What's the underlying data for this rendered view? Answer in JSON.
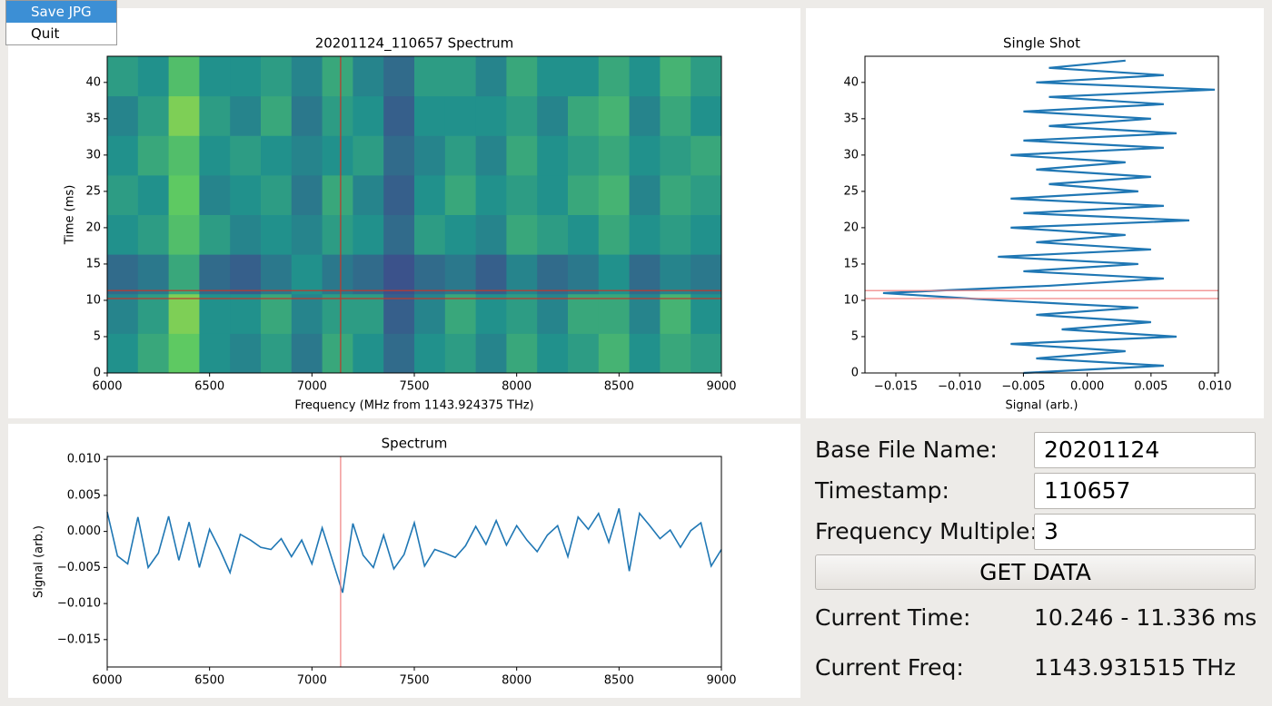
{
  "menu": [
    "Save JPG",
    "Quit"
  ],
  "chart_data": [
    {
      "type": "heatmap",
      "title": "20201124_110657 Spectrum",
      "x_label": "Frequency (MHz from 1143.924375 THz)",
      "y_label": "Time (ms)",
      "xlim": [
        6000,
        9000
      ],
      "ylim": [
        0,
        43.6
      ],
      "xticks": [
        6000,
        6500,
        7000,
        7500,
        8000,
        8500,
        9000
      ],
      "yticks": [
        0,
        5,
        10,
        15,
        20,
        25,
        30,
        35,
        40
      ],
      "zlim": [
        0,
        1
      ],
      "z": [
        [
          0.5,
          0.6,
          0.75,
          0.5,
          0.45,
          0.55,
          0.4,
          0.6,
          0.5,
          0.35,
          0.5,
          0.55,
          0.45,
          0.6,
          0.5,
          0.55,
          0.65,
          0.5,
          0.6,
          0.55
        ],
        [
          0.45,
          0.55,
          0.8,
          0.5,
          0.5,
          0.6,
          0.45,
          0.55,
          0.55,
          0.3,
          0.45,
          0.6,
          0.5,
          0.55,
          0.45,
          0.6,
          0.6,
          0.45,
          0.65,
          0.5
        ],
        [
          0.35,
          0.4,
          0.6,
          0.35,
          0.3,
          0.4,
          0.5,
          0.4,
          0.35,
          0.25,
          0.35,
          0.4,
          0.3,
          0.45,
          0.35,
          0.4,
          0.5,
          0.35,
          0.45,
          0.4
        ],
        [
          0.5,
          0.55,
          0.7,
          0.55,
          0.45,
          0.5,
          0.45,
          0.55,
          0.5,
          0.35,
          0.55,
          0.5,
          0.45,
          0.6,
          0.55,
          0.5,
          0.6,
          0.5,
          0.55,
          0.5
        ],
        [
          0.55,
          0.5,
          0.75,
          0.45,
          0.5,
          0.55,
          0.4,
          0.6,
          0.45,
          0.3,
          0.5,
          0.6,
          0.5,
          0.55,
          0.5,
          0.6,
          0.65,
          0.45,
          0.6,
          0.55
        ],
        [
          0.5,
          0.6,
          0.7,
          0.5,
          0.55,
          0.5,
          0.45,
          0.5,
          0.55,
          0.35,
          0.45,
          0.55,
          0.45,
          0.6,
          0.5,
          0.55,
          0.6,
          0.5,
          0.55,
          0.6
        ],
        [
          0.45,
          0.55,
          0.8,
          0.55,
          0.45,
          0.6,
          0.4,
          0.55,
          0.5,
          0.3,
          0.5,
          0.5,
          0.5,
          0.55,
          0.45,
          0.6,
          0.65,
          0.45,
          0.6,
          0.5
        ],
        [
          0.55,
          0.5,
          0.7,
          0.5,
          0.5,
          0.55,
          0.45,
          0.6,
          0.45,
          0.35,
          0.55,
          0.55,
          0.45,
          0.6,
          0.5,
          0.5,
          0.6,
          0.5,
          0.65,
          0.55
        ]
      ],
      "vlines": [
        7140
      ],
      "hlines": [
        10.246,
        11.336
      ],
      "marker_color": "#c0392b"
    },
    {
      "type": "line",
      "orientation": "vertical",
      "title": "Single Shot",
      "x_label": "Signal (arb.)",
      "color": "#1f77b4",
      "xlim": [
        -0.01742,
        0.01028
      ],
      "ylim": [
        0,
        43.6
      ],
      "xticks": [
        {
          "value": -0.015,
          "label": "−0.015"
        },
        {
          "value": -0.01,
          "label": "−0.010"
        },
        {
          "value": -0.005,
          "label": "−0.005"
        },
        {
          "value": 0,
          "label": "0.000"
        },
        {
          "value": 0.005,
          "label": "0.005"
        },
        {
          "value": 0.01,
          "label": "0.010"
        }
      ],
      "yticks": [
        0,
        5,
        10,
        15,
        20,
        25,
        30,
        35,
        40
      ],
      "y": [
        0,
        1,
        2,
        3,
        4,
        5,
        6,
        7,
        8,
        9,
        10,
        11,
        12,
        13,
        14,
        15,
        16,
        17,
        18,
        19,
        20,
        21,
        22,
        23,
        24,
        25,
        26,
        27,
        28,
        29,
        30,
        31,
        32,
        33,
        34,
        35,
        36,
        37,
        38,
        39,
        40,
        41,
        42,
        43
      ],
      "values": [
        -0.005,
        0.006,
        -0.004,
        0.003,
        -0.006,
        0.007,
        -0.002,
        0.005,
        -0.004,
        0.004,
        -0.007,
        -0.016,
        -0.003,
        0.006,
        -0.005,
        0.004,
        -0.007,
        0.005,
        -0.004,
        0.003,
        -0.006,
        0.008,
        -0.005,
        0.006,
        -0.006,
        0.004,
        -0.003,
        0.005,
        -0.004,
        0.003,
        -0.006,
        0.006,
        -0.005,
        0.007,
        -0.003,
        0.005,
        -0.005,
        0.006,
        -0.003,
        0.01,
        -0.004,
        0.006,
        -0.003,
        0.003
      ],
      "hlines": [
        10.246,
        11.336
      ],
      "marker_color": "#f08080"
    },
    {
      "type": "line",
      "title": "Spectrum",
      "y_label": "Signal (arb.)",
      "color": "#1f77b4",
      "xlim": [
        6000,
        9000
      ],
      "ylim": [
        -0.0188,
        0.0104
      ],
      "xticks": [
        6000,
        6500,
        7000,
        7500,
        8000,
        8500,
        9000
      ],
      "yticks": [
        {
          "value": 0.01,
          "label": "0.010"
        },
        {
          "value": 0.005,
          "label": "0.005"
        },
        {
          "value": 0,
          "label": "0.000"
        },
        {
          "value": -0.005,
          "label": "−0.005"
        },
        {
          "value": -0.01,
          "label": "−0.010"
        },
        {
          "value": -0.015,
          "label": "−0.015"
        }
      ],
      "x": [
        6000,
        6050,
        6100,
        6150,
        6200,
        6250,
        6300,
        6350,
        6400,
        6450,
        6500,
        6550,
        6600,
        6650,
        6700,
        6750,
        6800,
        6850,
        6900,
        6950,
        7000,
        7050,
        7100,
        7150,
        7200,
        7250,
        7300,
        7350,
        7400,
        7450,
        7500,
        7550,
        7600,
        7650,
        7700,
        7750,
        7800,
        7850,
        7900,
        7950,
        8000,
        8050,
        8100,
        8150,
        8200,
        8250,
        8300,
        8350,
        8400,
        8450,
        8500,
        8550,
        8600,
        8650,
        8700,
        8750,
        8800,
        8850,
        8900,
        8950,
        9000
      ],
      "values": [
        0.0027,
        -0.0034,
        -0.0045,
        0.002,
        -0.005,
        -0.003,
        0.0021,
        -0.004,
        0.0013,
        -0.005,
        0.0003,
        -0.0025,
        -0.0057,
        -0.0004,
        -0.0012,
        -0.0022,
        -0.0025,
        -0.001,
        -0.0035,
        -0.0012,
        -0.0045,
        0.0005,
        -0.004,
        -0.0085,
        0.0011,
        -0.0033,
        -0.005,
        -0.0005,
        -0.0052,
        -0.0032,
        0.0012,
        -0.0048,
        -0.0025,
        -0.003,
        -0.0036,
        -0.002,
        0.0007,
        -0.0018,
        0.0015,
        -0.0019,
        0.0008,
        -0.0012,
        -0.0028,
        -0.0005,
        0.0008,
        -0.0035,
        0.002,
        0.0003,
        0.0025,
        -0.0015,
        0.0032,
        -0.0055,
        0.0025,
        0.0008,
        -0.001,
        0.0002,
        -0.0022,
        0.0001,
        0.0012,
        -0.0048,
        -0.0025
      ],
      "vlines": [
        7140
      ],
      "marker_color": "#f08080"
    }
  ],
  "form": {
    "fields": [
      {
        "label": "Base File Name:",
        "value": "20201124"
      },
      {
        "label": "Timestamp:",
        "value": "110657"
      },
      {
        "label": "Frequency Multiple:",
        "value": "3"
      }
    ],
    "button": "GET DATA",
    "status": [
      {
        "label": "Current Time:",
        "value": "10.246 - 11.336 ms"
      },
      {
        "label": "Current Freq:",
        "value": "1143.931515 THz"
      }
    ]
  }
}
